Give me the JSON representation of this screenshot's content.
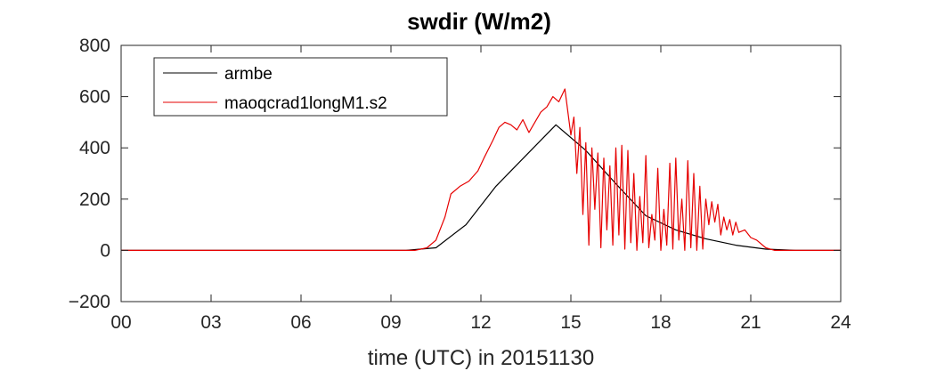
{
  "chart_data": {
    "type": "line",
    "title": "swdir  (W/m2)",
    "xlabel": "time (UTC) in 20151130",
    "ylabel": "",
    "xlim": [
      0,
      24
    ],
    "ylim": [
      -200,
      800
    ],
    "xticks": [
      0,
      3,
      6,
      9,
      12,
      15,
      18,
      21,
      24
    ],
    "xtick_labels": [
      "00",
      "03",
      "06",
      "09",
      "12",
      "15",
      "18",
      "21",
      "24"
    ],
    "yticks": [
      -200,
      0,
      200,
      400,
      600,
      800
    ],
    "ytick_labels": [
      "−200",
      "0",
      "200",
      "400",
      "600",
      "800"
    ],
    "grid": false,
    "legend_position": "top-left",
    "series": [
      {
        "name": "armbe",
        "color": "#000000",
        "x": [
          0,
          1.5,
          3.5,
          5.5,
          7.5,
          9.5,
          10.5,
          11.5,
          12.5,
          13.5,
          14.5,
          15.5,
          16.5,
          17.5,
          18.5,
          19.5,
          20.5,
          21.5,
          22.5,
          24
        ],
        "y": [
          0,
          0,
          0,
          0,
          0,
          0,
          10,
          100,
          250,
          370,
          490,
          390,
          260,
          135,
          80,
          45,
          20,
          5,
          0,
          0
        ]
      },
      {
        "name": "maoqcrad1longM1.s2",
        "color": "#e60000",
        "x": [
          0,
          9.8,
          10.2,
          10.5,
          10.8,
          11.0,
          11.3,
          11.6,
          11.9,
          12.1,
          12.4,
          12.6,
          12.8,
          13.0,
          13.2,
          13.4,
          13.6,
          13.8,
          14.0,
          14.2,
          14.4,
          14.6,
          14.8,
          15.0,
          15.1,
          15.2,
          15.3,
          15.4,
          15.5,
          15.6,
          15.7,
          15.8,
          15.9,
          16.0,
          16.1,
          16.2,
          16.3,
          16.4,
          16.5,
          16.6,
          16.7,
          16.8,
          16.9,
          17.0,
          17.1,
          17.2,
          17.3,
          17.4,
          17.5,
          17.6,
          17.7,
          17.8,
          17.9,
          18.0,
          18.1,
          18.2,
          18.3,
          18.4,
          18.5,
          18.6,
          18.7,
          18.8,
          18.9,
          19.0,
          19.1,
          19.2,
          19.3,
          19.4,
          19.5,
          19.6,
          19.7,
          19.8,
          19.9,
          20.0,
          20.1,
          20.2,
          20.3,
          20.4,
          20.5,
          20.6,
          20.8,
          21.0,
          21.2,
          21.5,
          21.8,
          22.0,
          24
        ],
        "y": [
          0,
          0,
          10,
          40,
          130,
          220,
          250,
          270,
          310,
          360,
          430,
          480,
          500,
          490,
          470,
          510,
          460,
          500,
          540,
          560,
          600,
          580,
          630,
          450,
          520,
          300,
          480,
          140,
          420,
          20,
          400,
          160,
          380,
          10,
          360,
          80,
          330,
          20,
          400,
          60,
          410,
          5,
          390,
          30,
          300,
          0,
          210,
          30,
          370,
          10,
          140,
          40,
          320,
          0,
          160,
          20,
          340,
          5,
          360,
          40,
          200,
          0,
          350,
          10,
          300,
          0,
          250,
          5,
          200,
          100,
          190,
          110,
          180,
          60,
          130,
          80,
          120,
          60,
          110,
          70,
          80,
          50,
          40,
          10,
          0,
          0,
          0
        ]
      }
    ]
  }
}
